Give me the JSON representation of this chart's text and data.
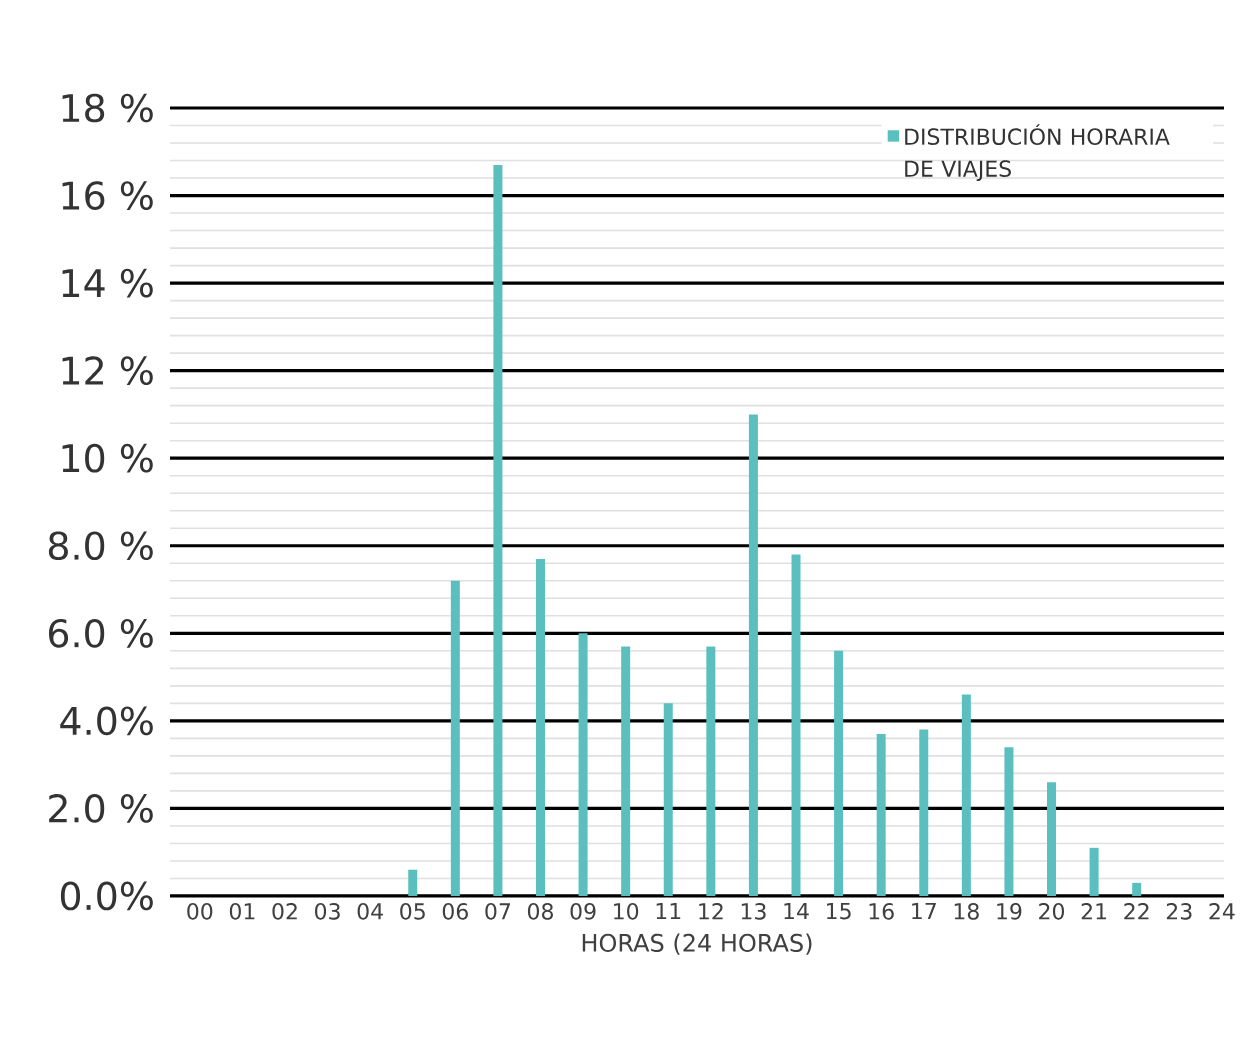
{
  "chart_data": {
    "type": "bar",
    "xlabel": "HORAS (24 HORAS)",
    "categories": [
      "00",
      "01",
      "02",
      "03",
      "04",
      "05",
      "06",
      "07",
      "08",
      "09",
      "10",
      "11",
      "12",
      "13",
      "14",
      "15",
      "16",
      "17",
      "18",
      "19",
      "20",
      "21",
      "22",
      "23",
      "24"
    ],
    "series": [
      {
        "name": "DISTRIBUCIÓN HORARIA DE VIAJES",
        "color": "#5bbfbf",
        "values": [
          null,
          null,
          null,
          null,
          null,
          0.6,
          7.2,
          16.7,
          7.7,
          6.0,
          5.7,
          4.4,
          5.7,
          11.0,
          7.8,
          5.6,
          3.7,
          3.8,
          4.6,
          3.4,
          2.6,
          1.1,
          0.3,
          null,
          null
        ]
      }
    ],
    "ylim": [
      0,
      18
    ],
    "yticks": [
      {
        "value": 0,
        "label": "0.0%"
      },
      {
        "value": 2,
        "label": "2.0 %"
      },
      {
        "value": 4,
        "label": "4.0%"
      },
      {
        "value": 6,
        "label": "6.0 %"
      },
      {
        "value": 8,
        "label": "8.0 %"
      },
      {
        "value": 10,
        "label": "10 %"
      },
      {
        "value": 12,
        "label": "12 %"
      },
      {
        "value": 14,
        "label": "14 %"
      },
      {
        "value": 16,
        "label": "16 %"
      },
      {
        "value": 18,
        "label": "18 %"
      }
    ],
    "grid": "y",
    "legend": "top right"
  }
}
